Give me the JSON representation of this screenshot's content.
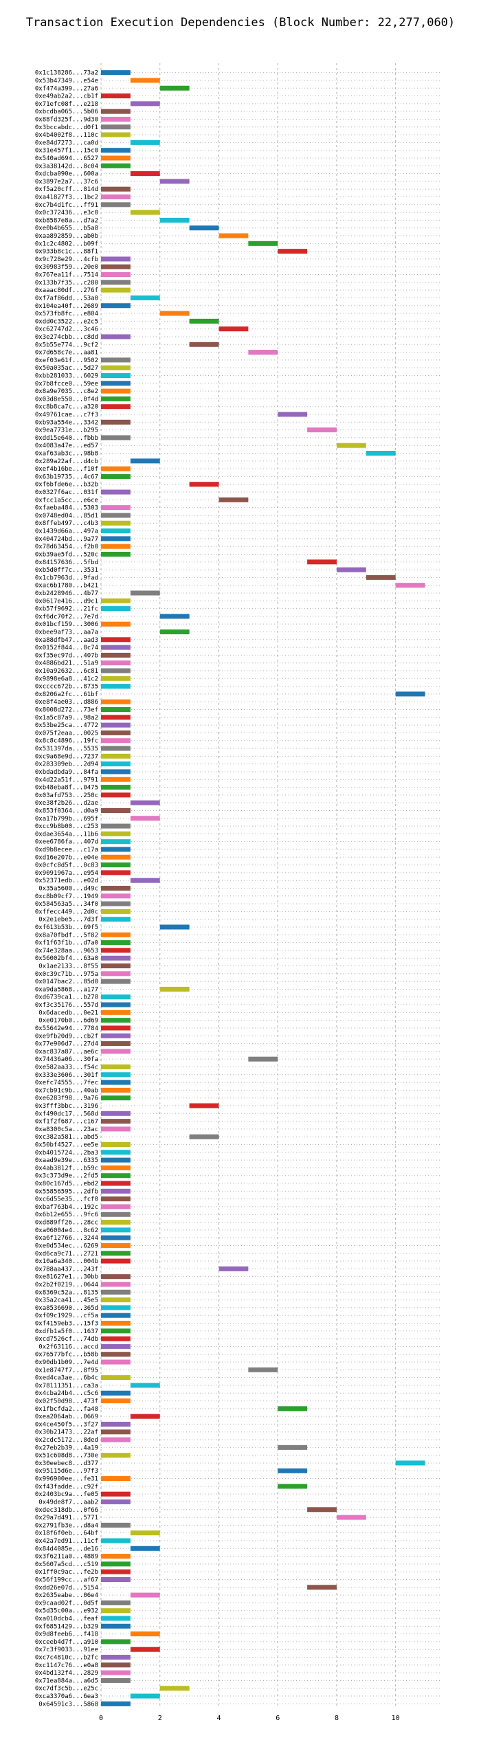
{
  "chart_data": {
    "type": "bar",
    "orientation": "horizontal",
    "title": "Transaction Execution Dependencies (Block Number: 22,277,060)",
    "xlabel": "",
    "ylabel": "",
    "xlim": [
      0,
      11.5
    ],
    "xticks": [
      "0",
      "2",
      "4",
      "6",
      "8",
      "10"
    ],
    "grid": true,
    "bar_width": 1,
    "palette": [
      "#1f77b4",
      "#ff7f0e",
      "#2ca02c",
      "#d62728",
      "#9467bd",
      "#8c564b",
      "#e377c2",
      "#7f7f7f",
      "#bcbd22",
      "#17becf"
    ],
    "transactions": [
      {
        "label": "0x1c138286...73a2",
        "start": 0
      },
      {
        "label": "0x53b47349...e54e",
        "start": 1
      },
      {
        "label": "0xf474a399...27a6",
        "start": 2
      },
      {
        "label": "0xe49ab2a2...cb1f",
        "start": 0
      },
      {
        "label": "0x71efc08f...e218",
        "start": 1
      },
      {
        "label": "0xbcdba065...5b06",
        "start": 0
      },
      {
        "label": "0x88fd325f...9d30",
        "start": 0
      },
      {
        "label": "0x3bccabdc...d0f1",
        "start": 0
      },
      {
        "label": "0x4b4002f8...110c",
        "start": 0
      },
      {
        "label": "0xe84d7273...ca0d",
        "start": 1
      },
      {
        "label": "0x31e457f1...15c0",
        "start": 0
      },
      {
        "label": "0x540ad694...6527",
        "start": 0
      },
      {
        "label": "0x3a38142d...8c04",
        "start": 0
      },
      {
        "label": "0xdcba090e...600a",
        "start": 1
      },
      {
        "label": "0x3897e2a7...37c6",
        "start": 2
      },
      {
        "label": "0xf5a20cff...814d",
        "start": 0
      },
      {
        "label": "0xa41827f3...1bc2",
        "start": 0
      },
      {
        "label": "0xc7b4d1fc...ff91",
        "start": 0
      },
      {
        "label": "0x0c372436...e3c0",
        "start": 1
      },
      {
        "label": "0xb8587e8a...d7a2",
        "start": 2
      },
      {
        "label": "0xe0b4b655...b5a8",
        "start": 3
      },
      {
        "label": "0xaa892859...ab0b",
        "start": 4
      },
      {
        "label": "0x1c2c4802...b09f",
        "start": 5
      },
      {
        "label": "0x933b8c1c...88f1",
        "start": 6
      },
      {
        "label": "0x9c728e29...4cfb",
        "start": 0
      },
      {
        "label": "0x30983f59...20e0",
        "start": 0
      },
      {
        "label": "0x767ea11f...7514",
        "start": 0
      },
      {
        "label": "0x133b7f35...c280",
        "start": 0
      },
      {
        "label": "0xaaac80df...276f",
        "start": 0
      },
      {
        "label": "0xf7af86dd...53a0",
        "start": 1
      },
      {
        "label": "0x104ea40f...2689",
        "start": 0
      },
      {
        "label": "0x573fb8fc...e804",
        "start": 2
      },
      {
        "label": "0xdd0c3522...e2c5",
        "start": 3
      },
      {
        "label": "0xc62747d2...3c46",
        "start": 4
      },
      {
        "label": "0x3e274cbb...c8dd",
        "start": 0
      },
      {
        "label": "0x5b55e774...9cf2",
        "start": 3
      },
      {
        "label": "0x7d658c7e...aa81",
        "start": 5
      },
      {
        "label": "0xef03e61f...9502",
        "start": 0
      },
      {
        "label": "0x50a035ac...5d27",
        "start": 0
      },
      {
        "label": "0xbb281033...6029",
        "start": 0
      },
      {
        "label": "0x7b8fcce0...59ee",
        "start": 0
      },
      {
        "label": "0x8a9e7035...c8e2",
        "start": 0
      },
      {
        "label": "0x03d8e550...0f4d",
        "start": 0
      },
      {
        "label": "0xc8b8ca7c...a320",
        "start": 0
      },
      {
        "label": "0x49761cae...c7f3",
        "start": 6
      },
      {
        "label": "0xb93a554e...3342",
        "start": 0
      },
      {
        "label": "0x9ea7731e...b295",
        "start": 7
      },
      {
        "label": "0xdd15e640...fbbb",
        "start": 0
      },
      {
        "label": "0x4083a47e...ed57",
        "start": 8
      },
      {
        "label": "0xaf63ab3c...98b8",
        "start": 9
      },
      {
        "label": "0x289a22af...d4cb",
        "start": 1
      },
      {
        "label": "0xef4b16be...f10f",
        "start": 0
      },
      {
        "label": "0x63b19735...4c67",
        "start": 0
      },
      {
        "label": "0xf6bfde6e...b32b",
        "start": 3
      },
      {
        "label": "0x0327f6ac...031f",
        "start": 0
      },
      {
        "label": "0xfcc1a5cc...e6ce",
        "start": 4
      },
      {
        "label": "0xfaeba484...5303",
        "start": 0
      },
      {
        "label": "0x0748ed04...85d1",
        "start": 0
      },
      {
        "label": "0x8ffeb497...c4b3",
        "start": 0
      },
      {
        "label": "0x1439d66a...497a",
        "start": 0
      },
      {
        "label": "0x404724bd...9a77",
        "start": 0
      },
      {
        "label": "0x78d63454...f2b0",
        "start": 0
      },
      {
        "label": "0xb39ae5fd...520c",
        "start": 0
      },
      {
        "label": "0x84157636...5fbd",
        "start": 7
      },
      {
        "label": "0xb5d0ff7c...3531",
        "start": 8
      },
      {
        "label": "0x1cb7963d...9fad",
        "start": 9
      },
      {
        "label": "0xac6b1780...b421",
        "start": 10
      },
      {
        "label": "0xb2428946...4b77",
        "start": 1
      },
      {
        "label": "0x0617e416...d9c1",
        "start": 0
      },
      {
        "label": "0xb57f9692...21fc",
        "start": 0
      },
      {
        "label": "0xf6dc70f2...7e7d",
        "start": 2
      },
      {
        "label": "0x01bcf159...3006",
        "start": 0
      },
      {
        "label": "0xbee9af73...aa7a",
        "start": 2
      },
      {
        "label": "0xa88dfb47...aad3",
        "start": 0
      },
      {
        "label": "0x0152f844...8c74",
        "start": 0
      },
      {
        "label": "0xf35ec97d...407b",
        "start": 0
      },
      {
        "label": "0x4886bd21...51a9",
        "start": 0
      },
      {
        "label": "0x10a92632...6c81",
        "start": 0
      },
      {
        "label": "0x9898e6a8...41c2",
        "start": 0
      },
      {
        "label": "0xcccc672b...8735",
        "start": 0
      },
      {
        "label": "0x8206a2fc...61bf",
        "start": 10
      },
      {
        "label": "0xe8f4ae03...d886",
        "start": 0
      },
      {
        "label": "0x8008d272...73ef",
        "start": 0
      },
      {
        "label": "0x1a5c87a9...98a2",
        "start": 0
      },
      {
        "label": "0x53be25ca...4772",
        "start": 0
      },
      {
        "label": "0x075f2eaa...0025",
        "start": 0
      },
      {
        "label": "0x8c8c4896...19fc",
        "start": 0
      },
      {
        "label": "0x531397da...5535",
        "start": 0
      },
      {
        "label": "0xc9a68e9d...7237",
        "start": 0
      },
      {
        "label": "0x283309eb...2d94",
        "start": 0
      },
      {
        "label": "0xbdadbda9...84fa",
        "start": 0
      },
      {
        "label": "0x4d22a51f...9791",
        "start": 0
      },
      {
        "label": "0xb48eba8f...0475",
        "start": 0
      },
      {
        "label": "0x03afd753...250c",
        "start": 0
      },
      {
        "label": "0xe38f2b26...d2ae",
        "start": 1
      },
      {
        "label": "0x853f0364...d0a9",
        "start": 0
      },
      {
        "label": "0xa17b799b...695f",
        "start": 1
      },
      {
        "label": "0xcc9b8b00...c253",
        "start": 0
      },
      {
        "label": "0xdae3654a...11b6",
        "start": 0
      },
      {
        "label": "0xee6786fa...407d",
        "start": 0
      },
      {
        "label": "0xd9b8ecee...c17a",
        "start": 0
      },
      {
        "label": "0xd16e207b...e04e",
        "start": 0
      },
      {
        "label": "0x0cfc8d5f...0c83",
        "start": 0
      },
      {
        "label": "0x9091967a...e954",
        "start": 0
      },
      {
        "label": "0x52371edb...e02d",
        "start": 1
      },
      {
        "label": "0x35a5600...d49c",
        "start": 0
      },
      {
        "label": "0xc8b09cf7...1949",
        "start": 0
      },
      {
        "label": "0x584563a5...34f0",
        "start": 0
      },
      {
        "label": "0xffecc449...2d0c",
        "start": 0
      },
      {
        "label": "0x2e1ebe5...7d3f",
        "start": 0
      },
      {
        "label": "0xf613b53b...69f5",
        "start": 2
      },
      {
        "label": "0x8a70fbdf...5f82",
        "start": 0
      },
      {
        "label": "0xf1f63f1b...d7a0",
        "start": 0
      },
      {
        "label": "0x74e328aa...9653",
        "start": 0
      },
      {
        "label": "0x56002bf4...63a0",
        "start": 0
      },
      {
        "label": "0x1ae2133...8f55",
        "start": 0
      },
      {
        "label": "0x0c39c71b...975a",
        "start": 0
      },
      {
        "label": "0x0147bac2...85d0",
        "start": 0
      },
      {
        "label": "0xa9da5868...a177",
        "start": 2
      },
      {
        "label": "0xd6739ca1...b278",
        "start": 0
      },
      {
        "label": "0xf3c35176...557d",
        "start": 0
      },
      {
        "label": "0x6dacedb...0e21",
        "start": 0
      },
      {
        "label": "0xe0170b0...6d69",
        "start": 0
      },
      {
        "label": "0x55642e94...7784",
        "start": 0
      },
      {
        "label": "0xe9fb20d9...cb2f",
        "start": 0
      },
      {
        "label": "0x77e906d7...27d4",
        "start": 0
      },
      {
        "label": "0xac837a87...ae6c",
        "start": 0
      },
      {
        "label": "0x74436a06...30fa",
        "start": 5
      },
      {
        "label": "0xe582aa33...f54c",
        "start": 0
      },
      {
        "label": "0x333e3606...301f",
        "start": 0
      },
      {
        "label": "0xefc74555...7fec",
        "start": 0
      },
      {
        "label": "0x7cb91c9b...40ab",
        "start": 0
      },
      {
        "label": "0xe6283f98...9a76",
        "start": 0
      },
      {
        "label": "0x3fff3bbc...3196",
        "start": 3
      },
      {
        "label": "0xf490dc17...568d",
        "start": 0
      },
      {
        "label": "0xf1f2f687...c167",
        "start": 0
      },
      {
        "label": "0xa8300c5a...23ac",
        "start": 0
      },
      {
        "label": "0xc382a581...abd5",
        "start": 3
      },
      {
        "label": "0x50bf4527...ee5e",
        "start": 0
      },
      {
        "label": "0xb4015724...2ba3",
        "start": 0
      },
      {
        "label": "0xaad9e39e...6335",
        "start": 0
      },
      {
        "label": "0x4ab3812f...b59c",
        "start": 0
      },
      {
        "label": "0x3c373d9e...2fd5",
        "start": 0
      },
      {
        "label": "0x80c167d5...ebd2",
        "start": 0
      },
      {
        "label": "0x55856595...2dfb",
        "start": 0
      },
      {
        "label": "0xc6d55e35...fcf0",
        "start": 0
      },
      {
        "label": "0xbaf763b4...192c",
        "start": 0
      },
      {
        "label": "0x6b12e655...9fc6",
        "start": 0
      },
      {
        "label": "0xd889ff26...28cc",
        "start": 0
      },
      {
        "label": "0xa06004e4...8c62",
        "start": 0
      },
      {
        "label": "0xa6f12766...3244",
        "start": 0
      },
      {
        "label": "0xe0d534ec...6269",
        "start": 0
      },
      {
        "label": "0xd6ca9c71...2721",
        "start": 0
      },
      {
        "label": "0x10a6a340...004b",
        "start": 0
      },
      {
        "label": "0x788aa437...243f",
        "start": 4
      },
      {
        "label": "0xe81627e1...30bb",
        "start": 0
      },
      {
        "label": "0x2b2f0219...0644",
        "start": 0
      },
      {
        "label": "0x8369c52a...8135",
        "start": 0
      },
      {
        "label": "0x35a2ca41...45e5",
        "start": 0
      },
      {
        "label": "0xa8536690...365d",
        "start": 0
      },
      {
        "label": "0xf09c1929...cf5a",
        "start": 0
      },
      {
        "label": "0xf4159eb3...15f3",
        "start": 0
      },
      {
        "label": "0xdfb1a5f0...1637",
        "start": 0
      },
      {
        "label": "0xcd7526cf...74db",
        "start": 0
      },
      {
        "label": "0x2f63116...accd",
        "start": 0
      },
      {
        "label": "0x76577bfc...b58b",
        "start": 0
      },
      {
        "label": "0x90db1b09...7e4d",
        "start": 0
      },
      {
        "label": "0x1e8747f7...8f95",
        "start": 5
      },
      {
        "label": "0xed4ca3ae...6b4c",
        "start": 0
      },
      {
        "label": "0x78111351...ca3a",
        "start": 1
      },
      {
        "label": "0x4cba24b4...c5c6",
        "start": 0
      },
      {
        "label": "0x02f50d98...473f",
        "start": 0
      },
      {
        "label": "0x1fbcfda2...fa48",
        "start": 6
      },
      {
        "label": "0xea2064ab...0669",
        "start": 1
      },
      {
        "label": "0x4ce450f5...3f27",
        "start": 0
      },
      {
        "label": "0x30b21473...22af",
        "start": 0
      },
      {
        "label": "0x2cdc5172...8ded",
        "start": 0
      },
      {
        "label": "0x27eb2b39...4a19",
        "start": 6
      },
      {
        "label": "0x51c608d8...730e",
        "start": 0
      },
      {
        "label": "0x30eebec8...d377",
        "start": 10
      },
      {
        "label": "0x95115d6e...97f3",
        "start": 6
      },
      {
        "label": "0x996900ee...fe31",
        "start": 0
      },
      {
        "label": "0xf43fadde...c92f",
        "start": 6
      },
      {
        "label": "0x2403bc9a...fe05",
        "start": 0
      },
      {
        "label": "0x49de8f7...aab2",
        "start": 0
      },
      {
        "label": "0xdec318db...0f66",
        "start": 7
      },
      {
        "label": "0x29a7d491...5771",
        "start": 8
      },
      {
        "label": "0x2791fb3e...d8a4",
        "start": 0
      },
      {
        "label": "0x18f6f0eb...64bf",
        "start": 1
      },
      {
        "label": "0x42a7ed91...11cf",
        "start": 0
      },
      {
        "label": "0x84d4085e...de16",
        "start": 1
      },
      {
        "label": "0x3f6211a0...4889",
        "start": 0
      },
      {
        "label": "0x5607a5cd...c519",
        "start": 0
      },
      {
        "label": "0x1ff0c9ac...fe2b",
        "start": 0
      },
      {
        "label": "0x56f199cc...af67",
        "start": 0
      },
      {
        "label": "0xdd26e07d...5154",
        "start": 7
      },
      {
        "label": "0x2635eabe...06e4",
        "start": 1
      },
      {
        "label": "0x9caad02f...0d5f",
        "start": 0
      },
      {
        "label": "0x5d35c00a...e932",
        "start": 0
      },
      {
        "label": "0xa010dcb4...feaf",
        "start": 0
      },
      {
        "label": "0xf6851429...b329",
        "start": 0
      },
      {
        "label": "0x9d8feeb6...f418",
        "start": 1
      },
      {
        "label": "0xceeb4d7f...a910",
        "start": 0
      },
      {
        "label": "0x7c3f9033...91ee",
        "start": 1
      },
      {
        "label": "0xc7c4810c...b2fc",
        "start": 0
      },
      {
        "label": "0xc1147c76...e0a8",
        "start": 0
      },
      {
        "label": "0x4bd132f4...2829",
        "start": 0
      },
      {
        "label": "0x71ea884a...a6d5",
        "start": 0
      },
      {
        "label": "0xc7df3c5b...e25c",
        "start": 2
      },
      {
        "label": "0xca3370a6...6ea3",
        "start": 1
      },
      {
        "label": "0x64591c3...5868",
        "start": 0
      }
    ]
  }
}
